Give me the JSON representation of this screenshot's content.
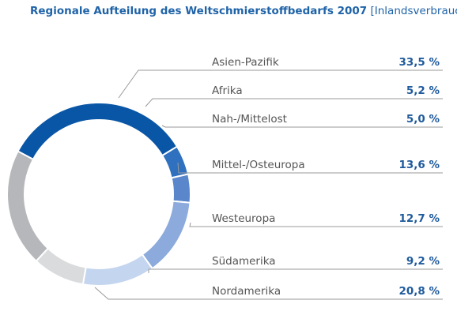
{
  "chart_data": {
    "type": "pie",
    "title": "Regionale Aufteilung des Weltschmierstoffbedarfs 2007",
    "subtitle": "[Inlandsverbrauch]",
    "slices": [
      {
        "label": "Asien-Pazifik",
        "value": 33.5,
        "value_label": "33,5 %",
        "color": "#0a56a6"
      },
      {
        "label": "Afrika",
        "value": 5.2,
        "value_label": "5,2 %",
        "color": "#2f70bf"
      },
      {
        "label": "Nah-/Mittelost",
        "value": 5.0,
        "value_label": "5,0 %",
        "color": "#5a87cb"
      },
      {
        "label": "Mittel-/Osteuropa",
        "value": 13.6,
        "value_label": "13,6 %",
        "color": "#8cabdc"
      },
      {
        "label": "Westeuropa",
        "value": 12.7,
        "value_label": "12,7 %",
        "color": "#c4d5ef"
      },
      {
        "label": "Südamerika",
        "value": 9.2,
        "value_label": "9,2 %",
        "color": "#dadbdd"
      },
      {
        "label": "Nordamerika",
        "value": 20.8,
        "value_label": "20,8 %",
        "color": "#b6b7bb"
      }
    ],
    "donut": true,
    "legend": "right"
  }
}
